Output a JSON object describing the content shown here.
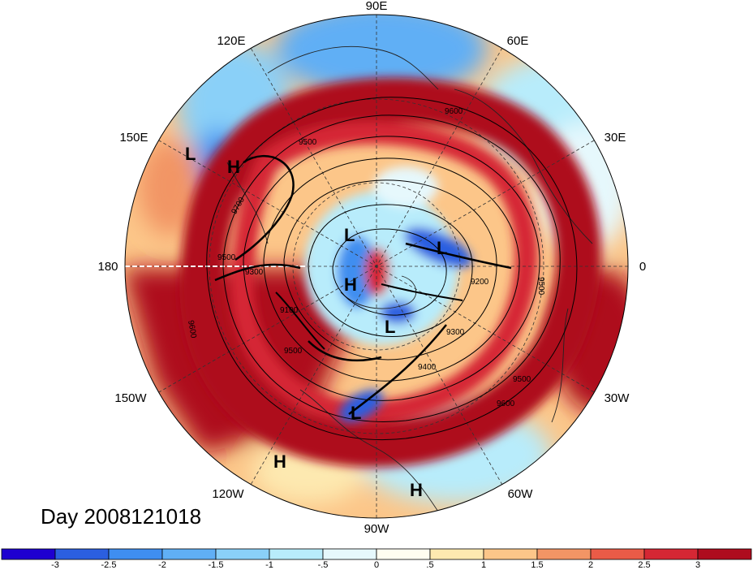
{
  "map": {
    "longitude_labels": [
      {
        "text": "90E",
        "name": "lon-label-90e"
      },
      {
        "text": "60E",
        "name": "lon-label-60e"
      },
      {
        "text": "30E",
        "name": "lon-label-30e"
      },
      {
        "text": "0",
        "name": "lon-label-0"
      },
      {
        "text": "30W",
        "name": "lon-label-30w"
      },
      {
        "text": "60W",
        "name": "lon-label-60w"
      },
      {
        "text": "90W",
        "name": "lon-label-90w"
      },
      {
        "text": "120W",
        "name": "lon-label-120w"
      },
      {
        "text": "150W",
        "name": "lon-label-150w"
      },
      {
        "text": "180",
        "name": "lon-label-180"
      },
      {
        "text": "150E",
        "name": "lon-label-150e"
      },
      {
        "text": "120E",
        "name": "lon-label-120e"
      }
    ],
    "pressure_centers": [
      {
        "type": "L",
        "name": "low-center-1"
      },
      {
        "type": "H",
        "name": "high-center-1"
      },
      {
        "type": "L",
        "name": "low-center-2"
      },
      {
        "type": "H",
        "name": "high-center-2"
      },
      {
        "type": "L",
        "name": "low-center-3"
      },
      {
        "type": "L",
        "name": "low-center-4"
      },
      {
        "type": "L",
        "name": "low-center-5"
      },
      {
        "type": "H",
        "name": "high-center-3"
      },
      {
        "type": "H",
        "name": "high-center-4"
      }
    ],
    "contour_labels": [
      "9600",
      "9500",
      "9700",
      "9500",
      "9300",
      "9100",
      "9200",
      "9300",
      "9400",
      "9500",
      "9500",
      "9600",
      "9600",
      "9500"
    ],
    "date_label": "Day 2008121018"
  },
  "colorbar": {
    "colors": [
      "#1e00d0",
      "#2b5fe0",
      "#3f8ef0",
      "#60aff5",
      "#8ad0f8",
      "#b8ecfb",
      "#e6f8fc",
      "#fffdf0",
      "#fde9b0",
      "#fcc689",
      "#f29565",
      "#ea5b47",
      "#d52734",
      "#ae0c1e"
    ],
    "labels": [
      "-3",
      "-2.5",
      "-2",
      "-1.5",
      "-1",
      "-.5",
      "0",
      ".5",
      "1",
      "1.5",
      "2",
      "2.5",
      "3"
    ]
  }
}
